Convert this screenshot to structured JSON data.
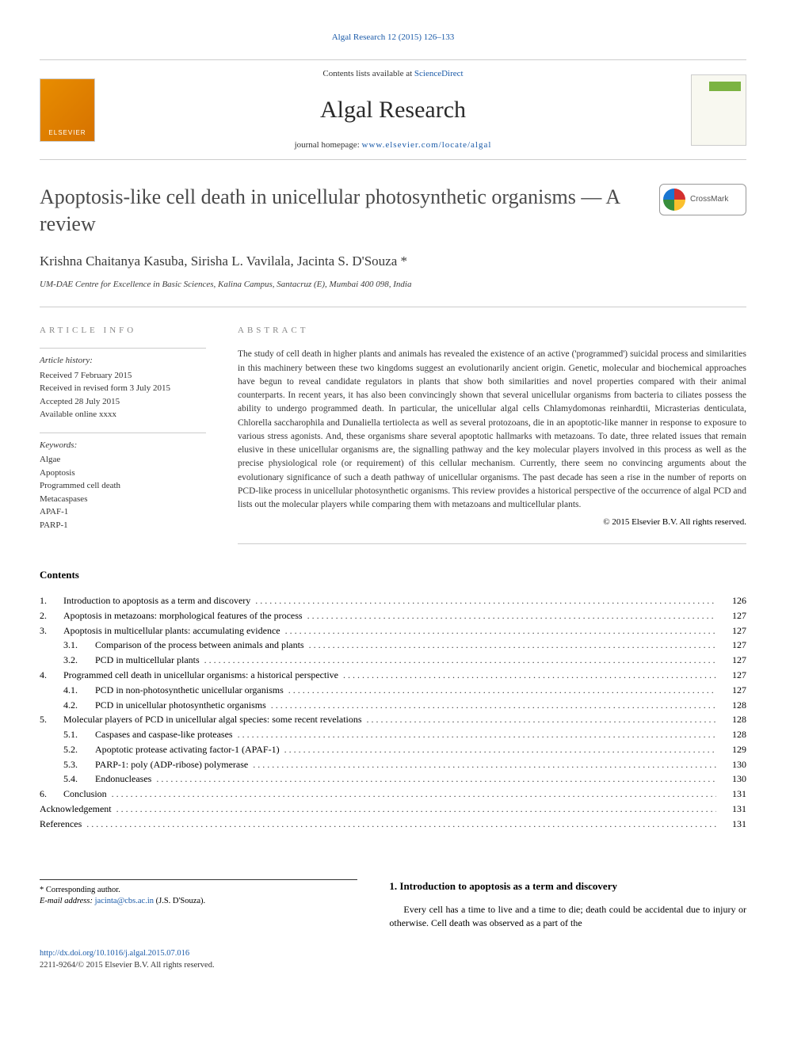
{
  "header": {
    "top_link": "Algal Research 12 (2015) 126–133",
    "contents_line_prefix": "Contents lists available at ",
    "contents_line_link": "ScienceDirect",
    "journal_name": "Algal Research",
    "homepage_prefix": "journal homepage: ",
    "homepage_link": "www.elsevier.com/locate/algal",
    "elsevier_label": "ELSEVIER"
  },
  "badge": {
    "crossmark_label": "CrossMark"
  },
  "article": {
    "title": "Apoptosis-like cell death in unicellular photosynthetic organisms — A review",
    "authors": "Krishna Chaitanya Kasuba, Sirisha L. Vavilala, Jacinta S. D'Souza *",
    "affiliation": "UM-DAE Centre for Excellence in Basic Sciences, Kalina Campus, Santacruz (E), Mumbai 400 098, India"
  },
  "info": {
    "label": "article info",
    "history_heading": "Article history:",
    "received": "Received 7 February 2015",
    "revised": "Received in revised form 3 July 2015",
    "accepted": "Accepted 28 July 2015",
    "online": "Available online xxxx",
    "keywords_heading": "Keywords:",
    "k1": "Algae",
    "k2": "Apoptosis",
    "k3": "Programmed cell death",
    "k4": "Metacaspases",
    "k5": "APAF-1",
    "k6": "PARP-1"
  },
  "abstract": {
    "label": "abstract",
    "text": "The study of cell death in higher plants and animals has revealed the existence of an active ('programmed') suicidal process and similarities in this machinery between these two kingdoms suggest an evolutionarily ancient origin. Genetic, molecular and biochemical approaches have begun to reveal candidate regulators in plants that show both similarities and novel properties compared with their animal counterparts. In recent years, it has also been convincingly shown that several unicellular organisms from bacteria to ciliates possess the ability to undergo programmed death. In particular, the unicellular algal cells Chlamydomonas reinhardtii, Micrasterias denticulata, Chlorella saccharophila and Dunaliella tertiolecta as well as several protozoans, die in an apoptotic-like manner in response to exposure to various stress agonists. And, these organisms share several apoptotic hallmarks with metazoans. To date, three related issues that remain elusive in these unicellular organisms are, the signalling pathway and the key molecular players involved in this process as well as the precise physiological role (or requirement) of this cellular mechanism. Currently, there seem no convincing arguments about the evolutionary significance of such a death pathway of unicellular organisms. The past decade has seen a rise in the number of reports on PCD-like process in unicellular photosynthetic organisms. This review provides a historical perspective of the occurrence of algal PCD and lists out the molecular players while comparing them with metazoans and multicellular plants.",
    "copyright": "© 2015 Elsevier B.V. All rights reserved."
  },
  "contents": {
    "heading": "Contents",
    "items": [
      {
        "num": "1.",
        "sub": "",
        "title": "Introduction to apoptosis as a term and discovery",
        "page": "126"
      },
      {
        "num": "2.",
        "sub": "",
        "title": "Apoptosis in metazoans: morphological features of the process",
        "page": "127"
      },
      {
        "num": "3.",
        "sub": "",
        "title": "Apoptosis in multicellular plants: accumulating evidence",
        "page": "127"
      },
      {
        "num": "",
        "sub": "3.1.",
        "title": "Comparison of the process between animals and plants",
        "page": "127"
      },
      {
        "num": "",
        "sub": "3.2.",
        "title": "PCD in multicellular plants",
        "page": "127"
      },
      {
        "num": "4.",
        "sub": "",
        "title": "Programmed cell death in unicellular organisms: a historical perspective",
        "page": "127"
      },
      {
        "num": "",
        "sub": "4.1.",
        "title": "PCD in non-photosynthetic unicellular organisms",
        "page": "127"
      },
      {
        "num": "",
        "sub": "4.2.",
        "title": "PCD in unicellular photosynthetic organisms",
        "page": "128"
      },
      {
        "num": "5.",
        "sub": "",
        "title": "Molecular players of PCD in unicellular algal species: some recent revelations",
        "page": "128"
      },
      {
        "num": "",
        "sub": "5.1.",
        "title": "Caspases and caspase-like proteases",
        "page": "128"
      },
      {
        "num": "",
        "sub": "5.2.",
        "title": "Apoptotic protease activating factor-1 (APAF-1)",
        "page": "129"
      },
      {
        "num": "",
        "sub": "5.3.",
        "title": "PARP-1: poly (ADP-ribose) polymerase",
        "page": "130"
      },
      {
        "num": "",
        "sub": "5.4.",
        "title": "Endonucleases",
        "page": "130"
      },
      {
        "num": "6.",
        "sub": "",
        "title": "Conclusion",
        "page": "131"
      },
      {
        "num": "",
        "sub": "",
        "title": "Acknowledgement",
        "page": "131"
      },
      {
        "num": "",
        "sub": "",
        "title": "References",
        "page": "131"
      }
    ]
  },
  "footer_note": {
    "corresponding": "* Corresponding author.",
    "email_prefix": "E-mail address: ",
    "email": "jacinta@cbs.ac.in",
    "email_suffix": " (J.S. D'Souza)."
  },
  "intro": {
    "heading": "1. Introduction to apoptosis as a term and discovery",
    "text": "Every cell has a time to live and a time to die; death could be accidental due to injury or otherwise. Cell death was observed as a part of the"
  },
  "footer": {
    "doi": "http://dx.doi.org/10.1016/j.algal.2015.07.016",
    "issn_copy": "2211-9264/© 2015 Elsevier B.V. All rights reserved."
  },
  "colors": {
    "link": "#1a5aa8",
    "text": "#333333",
    "rule": "#cccccc",
    "elsevier_orange": "#e88d00",
    "algal_green": "#7bb342"
  },
  "typography": {
    "title_fontsize": 26,
    "journal_fontsize": 30,
    "authors_fontsize": 17,
    "body_fontsize": 12,
    "meta_fontsize": 11
  }
}
